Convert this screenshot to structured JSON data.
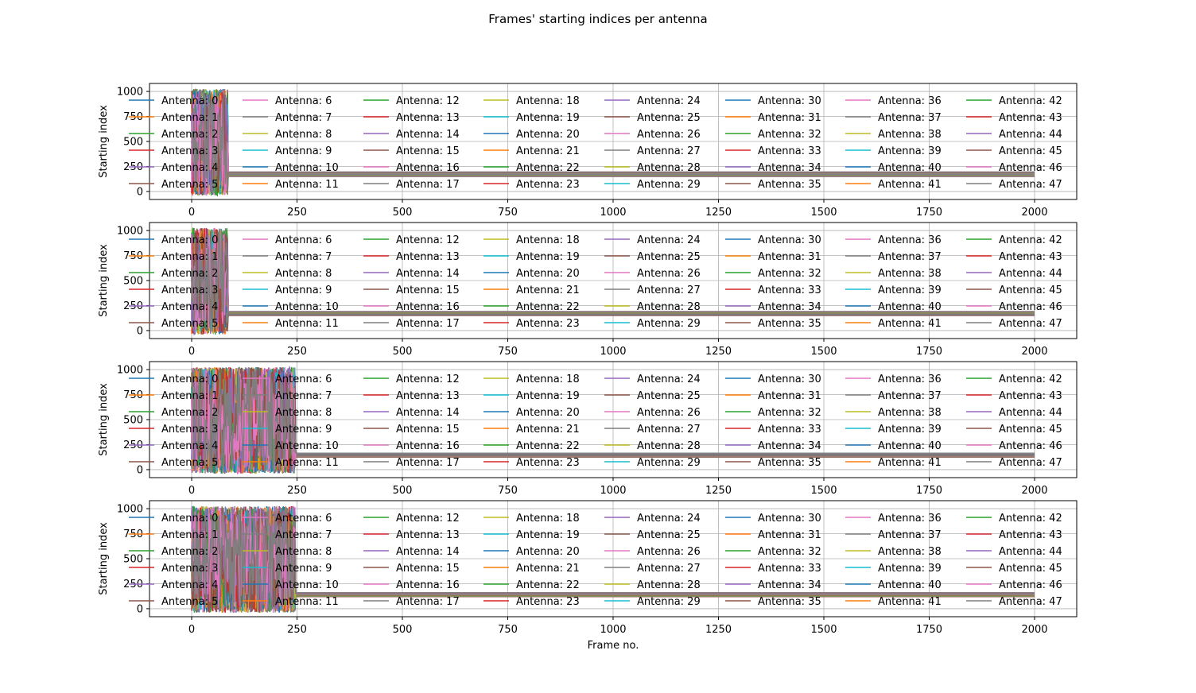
{
  "chart_data": {
    "title": "Frames' starting indices per antenna",
    "type": "line",
    "shared_xlabel": "Frame no.",
    "x_ticks": [
      0,
      250,
      500,
      750,
      1000,
      1250,
      1500,
      1750,
      2000
    ],
    "y_ticks": [
      0,
      250,
      500,
      750,
      1000
    ],
    "xlim": [
      -100,
      2100
    ],
    "ylim": [
      -80,
      1080
    ],
    "grid": true,
    "legend_placement": "upper center, 8 columns",
    "palette": [
      "#1f77b4",
      "#ff7f0e",
      "#2ca02c",
      "#d62728",
      "#9467bd",
      "#8c564b",
      "#e377c2",
      "#7f7f7f",
      "#bcbd22",
      "#17becf"
    ],
    "series_names": [
      "Antenna: 0",
      "Antenna: 1",
      "Antenna: 2",
      "Antenna: 3",
      "Antenna: 4",
      "Antenna: 5",
      "Antenna: 6",
      "Antenna: 7",
      "Antenna: 8",
      "Antenna: 9",
      "Antenna: 10",
      "Antenna: 11",
      "Antenna: 12",
      "Antenna: 13",
      "Antenna: 14",
      "Antenna: 15",
      "Antenna: 16",
      "Antenna: 17",
      "Antenna: 18",
      "Antenna: 19",
      "Antenna: 20",
      "Antenna: 21",
      "Antenna: 22",
      "Antenna: 23",
      "Antenna: 24",
      "Antenna: 25",
      "Antenna: 26",
      "Antenna: 27",
      "Antenna: 28",
      "Antenna: 29",
      "Antenna: 30",
      "Antenna: 31",
      "Antenna: 32",
      "Antenna: 33",
      "Antenna: 34",
      "Antenna: 35",
      "Antenna: 36",
      "Antenna: 37",
      "Antenna: 38",
      "Antenna: 39",
      "Antenna: 40",
      "Antenna: 41",
      "Antenna: 42",
      "Antenna: 43",
      "Antenna: 44",
      "Antenna: 45",
      "Antenna: 46",
      "Antenna: 47"
    ],
    "subplots": [
      {
        "ylabel": "Starting index",
        "xlabel": "",
        "noisy_until_frame": 85,
        "steady_frame_end": 2000,
        "steady_value_range": [
          150,
          195
        ]
      },
      {
        "ylabel": "Starting index",
        "xlabel": "",
        "noisy_until_frame": 85,
        "steady_frame_end": 2000,
        "steady_value_range": [
          150,
          190
        ]
      },
      {
        "ylabel": "Starting index",
        "xlabel": "",
        "noisy_until_frame": 245,
        "steady_frame_end": 2000,
        "steady_value_range": [
          125,
          165
        ]
      },
      {
        "ylabel": "Starting index",
        "xlabel": "Frame no.",
        "noisy_until_frame": 245,
        "steady_frame_end": 2000,
        "steady_value_range": [
          120,
          160
        ]
      }
    ]
  }
}
